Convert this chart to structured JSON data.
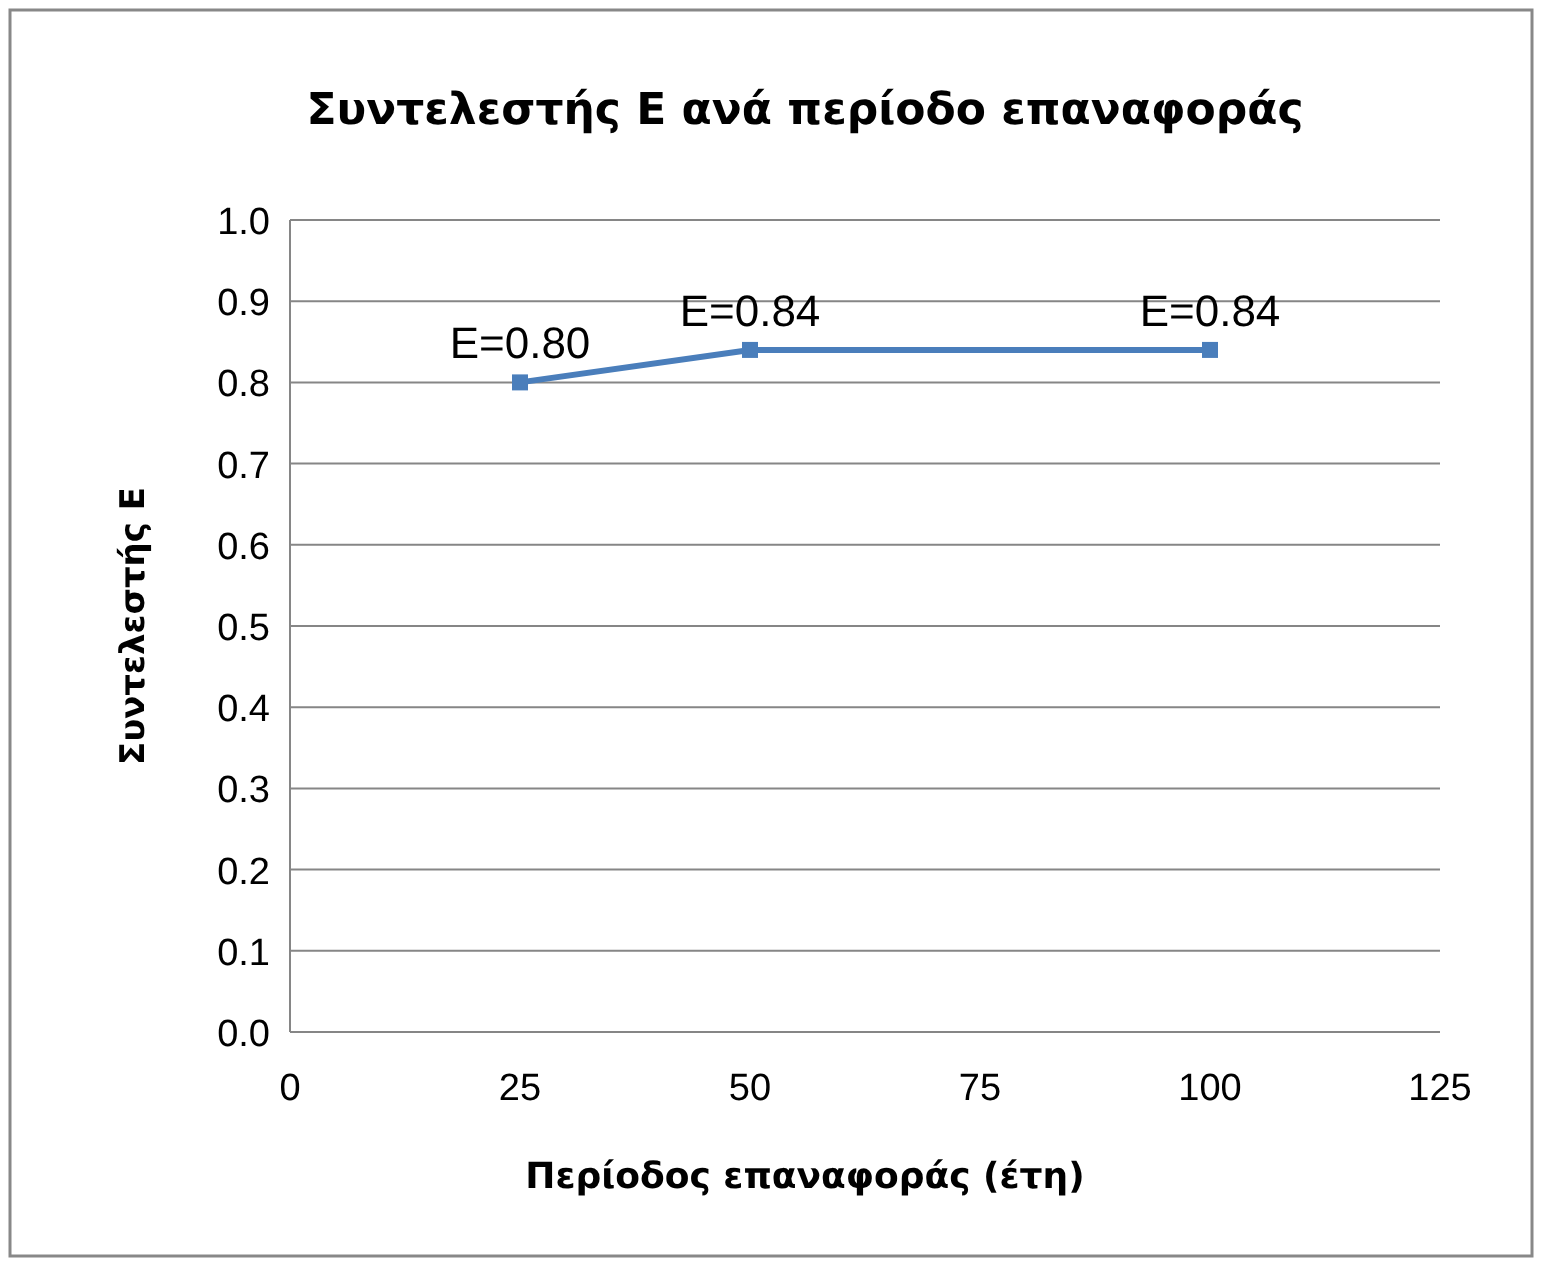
{
  "chart_data": {
    "type": "line",
    "title": "Συντελεστής Ε ανά περίοδο επαναφοράς",
    "xlabel": "Περίοδος επαναφοράς (έτη)",
    "ylabel": "Συντελεστής Ε",
    "x": [
      25,
      50,
      100
    ],
    "series": [
      {
        "color": "#4a7ebb",
        "values": [
          0.8,
          0.84,
          0.84
        ],
        "value_labels": [
          "E=0.80",
          "E=0.84",
          "E=0.84"
        ]
      }
    ],
    "xlim": [
      0,
      125
    ],
    "xticks": [
      0,
      25,
      50,
      75,
      100,
      125
    ],
    "ylim": [
      0,
      1
    ],
    "yticks": [
      {
        "value": 0,
        "label": "0.0"
      },
      {
        "value": 0.1,
        "label": "0.1"
      },
      {
        "value": 0.2,
        "label": "0.2"
      },
      {
        "value": 0.3,
        "label": "0.3"
      },
      {
        "value": 0.4,
        "label": "0.4"
      },
      {
        "value": 0.5,
        "label": "0.5"
      },
      {
        "value": 0.6,
        "label": "0.6"
      },
      {
        "value": 0.7,
        "label": "0.7"
      },
      {
        "value": 0.8,
        "label": "0.8"
      },
      {
        "value": 0.9,
        "label": "0.9"
      },
      {
        "value": 1,
        "label": "1.0"
      }
    ],
    "grid": "y",
    "marker": "square",
    "line_style": "solid"
  }
}
